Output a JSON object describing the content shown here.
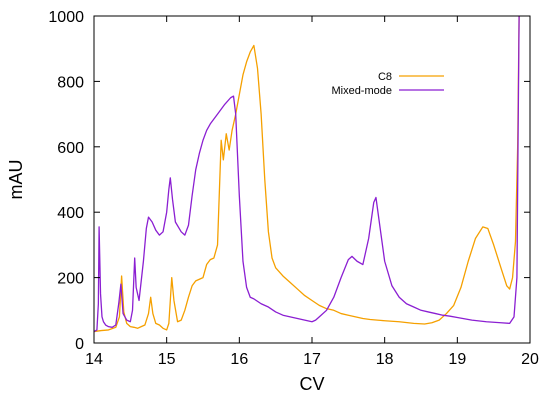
{
  "chart_data": {
    "type": "line",
    "title": "",
    "xlabel": "CV",
    "ylabel": "mAU",
    "xlim": [
      14,
      20
    ],
    "ylim": [
      0,
      1000
    ],
    "x_ticks": [
      14,
      15,
      16,
      17,
      18,
      19,
      20
    ],
    "y_ticks": [
      0,
      200,
      400,
      600,
      800,
      1000
    ],
    "grid": false,
    "legend_position": "top-right",
    "series": [
      {
        "name": "C8",
        "color": "#f5a000",
        "points": [
          [
            14.0,
            35
          ],
          [
            14.1,
            38
          ],
          [
            14.2,
            40
          ],
          [
            14.3,
            48
          ],
          [
            14.35,
            80
          ],
          [
            14.38,
            205
          ],
          [
            14.41,
            95
          ],
          [
            14.45,
            60
          ],
          [
            14.5,
            50
          ],
          [
            14.55,
            48
          ],
          [
            14.6,
            45
          ],
          [
            14.65,
            50
          ],
          [
            14.7,
            55
          ],
          [
            14.75,
            90
          ],
          [
            14.78,
            140
          ],
          [
            14.81,
            90
          ],
          [
            14.85,
            60
          ],
          [
            14.9,
            55
          ],
          [
            14.95,
            45
          ],
          [
            15.0,
            40
          ],
          [
            15.03,
            60
          ],
          [
            15.05,
            130
          ],
          [
            15.07,
            200
          ],
          [
            15.1,
            130
          ],
          [
            15.15,
            65
          ],
          [
            15.2,
            70
          ],
          [
            15.25,
            100
          ],
          [
            15.3,
            140
          ],
          [
            15.35,
            175
          ],
          [
            15.4,
            190
          ],
          [
            15.45,
            195
          ],
          [
            15.5,
            200
          ],
          [
            15.55,
            240
          ],
          [
            15.6,
            255
          ],
          [
            15.65,
            260
          ],
          [
            15.7,
            300
          ],
          [
            15.72,
            430
          ],
          [
            15.75,
            620
          ],
          [
            15.78,
            560
          ],
          [
            15.82,
            640
          ],
          [
            15.86,
            590
          ],
          [
            15.9,
            650
          ],
          [
            15.95,
            700
          ],
          [
            16.0,
            760
          ],
          [
            16.05,
            820
          ],
          [
            16.1,
            860
          ],
          [
            16.15,
            890
          ],
          [
            16.2,
            910
          ],
          [
            16.25,
            840
          ],
          [
            16.3,
            700
          ],
          [
            16.35,
            500
          ],
          [
            16.4,
            340
          ],
          [
            16.45,
            260
          ],
          [
            16.5,
            230
          ],
          [
            16.6,
            205
          ],
          [
            16.7,
            185
          ],
          [
            16.8,
            165
          ],
          [
            16.9,
            145
          ],
          [
            17.0,
            130
          ],
          [
            17.1,
            115
          ],
          [
            17.2,
            105
          ],
          [
            17.3,
            100
          ],
          [
            17.4,
            90
          ],
          [
            17.5,
            85
          ],
          [
            17.6,
            80
          ],
          [
            17.7,
            75
          ],
          [
            17.8,
            72
          ],
          [
            17.9,
            70
          ],
          [
            18.0,
            68
          ],
          [
            18.2,
            65
          ],
          [
            18.4,
            60
          ],
          [
            18.55,
            58
          ],
          [
            18.65,
            62
          ],
          [
            18.75,
            70
          ],
          [
            18.85,
            90
          ],
          [
            18.95,
            115
          ],
          [
            19.05,
            170
          ],
          [
            19.15,
            250
          ],
          [
            19.25,
            320
          ],
          [
            19.35,
            355
          ],
          [
            19.42,
            350
          ],
          [
            19.5,
            300
          ],
          [
            19.6,
            230
          ],
          [
            19.68,
            175
          ],
          [
            19.72,
            165
          ],
          [
            19.76,
            200
          ],
          [
            19.8,
            310
          ],
          [
            19.83,
            600
          ],
          [
            19.85,
            1000
          ]
        ]
      },
      {
        "name": "Mixed-mode",
        "color": "#8b1fd2",
        "points": [
          [
            14.0,
            35
          ],
          [
            14.04,
            40
          ],
          [
            14.06,
            120
          ],
          [
            14.07,
            355
          ],
          [
            14.09,
            150
          ],
          [
            14.11,
            80
          ],
          [
            14.13,
            65
          ],
          [
            14.16,
            55
          ],
          [
            14.2,
            50
          ],
          [
            14.25,
            48
          ],
          [
            14.3,
            55
          ],
          [
            14.34,
            120
          ],
          [
            14.37,
            180
          ],
          [
            14.4,
            90
          ],
          [
            14.45,
            70
          ],
          [
            14.5,
            65
          ],
          [
            14.53,
            100
          ],
          [
            14.56,
            260
          ],
          [
            14.58,
            170
          ],
          [
            14.62,
            130
          ],
          [
            14.68,
            250
          ],
          [
            14.72,
            350
          ],
          [
            14.75,
            385
          ],
          [
            14.8,
            370
          ],
          [
            14.85,
            345
          ],
          [
            14.9,
            330
          ],
          [
            14.95,
            340
          ],
          [
            15.0,
            400
          ],
          [
            15.03,
            470
          ],
          [
            15.05,
            505
          ],
          [
            15.08,
            440
          ],
          [
            15.12,
            370
          ],
          [
            15.2,
            340
          ],
          [
            15.25,
            330
          ],
          [
            15.3,
            360
          ],
          [
            15.35,
            450
          ],
          [
            15.4,
            530
          ],
          [
            15.45,
            580
          ],
          [
            15.5,
            620
          ],
          [
            15.55,
            650
          ],
          [
            15.6,
            670
          ],
          [
            15.7,
            700
          ],
          [
            15.8,
            730
          ],
          [
            15.88,
            750
          ],
          [
            15.92,
            755
          ],
          [
            15.95,
            700
          ],
          [
            16.0,
            450
          ],
          [
            16.05,
            250
          ],
          [
            16.1,
            170
          ],
          [
            16.15,
            140
          ],
          [
            16.2,
            135
          ],
          [
            16.3,
            120
          ],
          [
            16.4,
            110
          ],
          [
            16.5,
            95
          ],
          [
            16.6,
            85
          ],
          [
            16.7,
            80
          ],
          [
            16.8,
            75
          ],
          [
            16.9,
            70
          ],
          [
            17.0,
            65
          ],
          [
            17.05,
            70
          ],
          [
            17.1,
            80
          ],
          [
            17.2,
            100
          ],
          [
            17.3,
            140
          ],
          [
            17.4,
            200
          ],
          [
            17.5,
            255
          ],
          [
            17.55,
            265
          ],
          [
            17.62,
            250
          ],
          [
            17.7,
            240
          ],
          [
            17.78,
            320
          ],
          [
            17.85,
            430
          ],
          [
            17.88,
            445
          ],
          [
            17.92,
            380
          ],
          [
            18.0,
            250
          ],
          [
            18.1,
            175
          ],
          [
            18.2,
            140
          ],
          [
            18.3,
            120
          ],
          [
            18.4,
            110
          ],
          [
            18.5,
            100
          ],
          [
            18.6,
            95
          ],
          [
            18.7,
            90
          ],
          [
            18.8,
            85
          ],
          [
            18.9,
            82
          ],
          [
            19.0,
            78
          ],
          [
            19.2,
            70
          ],
          [
            19.4,
            65
          ],
          [
            19.6,
            62
          ],
          [
            19.72,
            60
          ],
          [
            19.78,
            80
          ],
          [
            19.82,
            200
          ],
          [
            19.85,
            1000
          ]
        ]
      }
    ]
  }
}
